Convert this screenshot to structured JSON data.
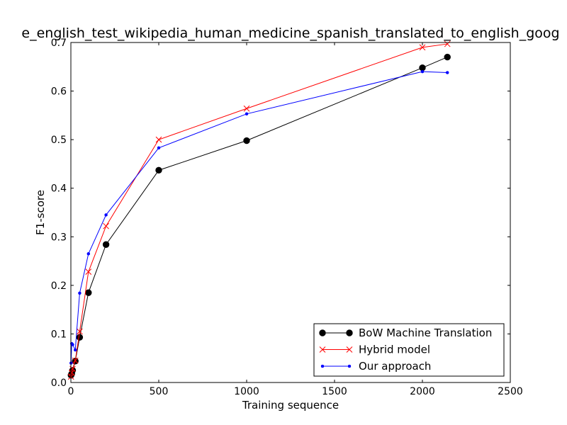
{
  "chart_data": {
    "type": "line",
    "title": "e_english_test_wikipedia_human_medicine_spanish_translated_to_english_goog",
    "xlabel": "Training sequence",
    "ylabel": "F1-score",
    "xlim": [
      0,
      2500
    ],
    "ylim": [
      0,
      0.7
    ],
    "xticks": [
      "0",
      "500",
      "1000",
      "1500",
      "2000",
      "2500"
    ],
    "yticks": [
      "0.0",
      "0.1",
      "0.2",
      "0.3",
      "0.4",
      "0.5",
      "0.6",
      "0.7"
    ],
    "grid": false,
    "legend_position": "bottom-right",
    "series": [
      {
        "name": "BoW Machine Translation",
        "color": "#000000",
        "marker": "circle",
        "x": [
          1,
          5,
          10,
          25,
          50,
          100,
          200,
          500,
          1000,
          2000,
          2142
        ],
        "y": [
          0.015,
          0.018,
          0.025,
          0.044,
          0.093,
          0.185,
          0.284,
          0.437,
          0.498,
          0.648,
          0.67
        ]
      },
      {
        "name": "Hybrid model",
        "color": "#ff0000",
        "marker": "x",
        "x": [
          1,
          5,
          10,
          25,
          50,
          100,
          200,
          500,
          1000,
          2000,
          2142
        ],
        "y": [
          0.012,
          0.02,
          0.028,
          0.045,
          0.105,
          0.228,
          0.322,
          0.5,
          0.564,
          0.69,
          0.697
        ]
      },
      {
        "name": "Our approach",
        "color": "#0000ff",
        "marker": "dot",
        "x": [
          1,
          5,
          10,
          25,
          50,
          100,
          200,
          500,
          1000,
          2000,
          2142
        ],
        "y": [
          0.04,
          0.08,
          0.078,
          0.067,
          0.184,
          0.265,
          0.345,
          0.483,
          0.553,
          0.64,
          0.638
        ]
      }
    ]
  }
}
